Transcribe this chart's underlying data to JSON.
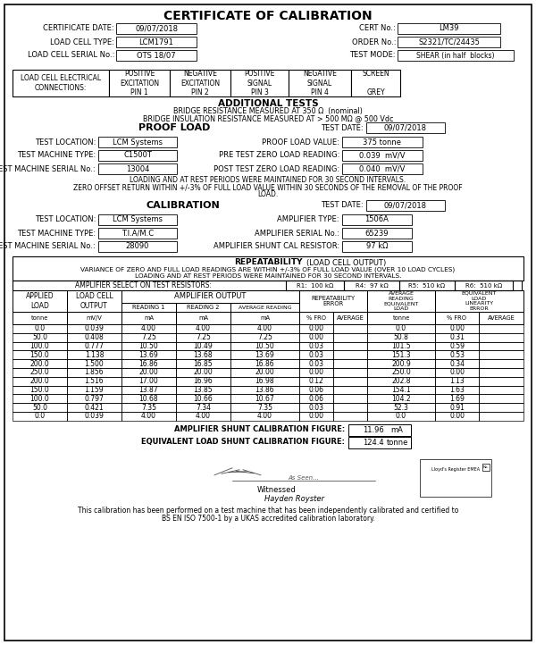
{
  "title": "CERTIFICATE OF CALIBRATION",
  "cert_date": "09/07/2018",
  "cert_no": "LM39",
  "load_cell_type": "LCM1791",
  "order_no": "S2321/TC/24435",
  "load_cell_serial": "OTS 18/07",
  "test_mode": "SHEAR (in half  blocks)",
  "conn_pos_exc": "POSITIVE\nEXCITATION\nPIN 1",
  "conn_neg_exc": "NEGATIVE\nEXCITATION\nPIN 2",
  "conn_pos_sig": "POSITIVE\nSIGNAL\nPIN 3",
  "conn_neg_sig": "NEGATIVE\nSIGNAL\nPIN 4",
  "conn_screen": "SCREEN\n\nGREY",
  "additional_tests_title": "ADDITIONAL TESTS",
  "bridge_resistance": "BRIDGE RESISTANCE MEASURED AT 350 Ω  (nominal)",
  "bridge_insulation": "BRIDGE INSULATION RESISTANCE MEASURED AT > 500 MΩ @ 500 Vdc",
  "proof_load_title": "PROOF LOAD",
  "proof_test_date": "09/07/2018",
  "proof_test_location": "LCM Systems",
  "proof_load_value": "375 tonne",
  "proof_machine_type": "C1500T",
  "pre_test_zero": "0.039  mV/V",
  "proof_serial": "13004",
  "post_test_zero": "0.040  mV/V",
  "proof_note1": "LOADING AND AT REST PERIODS WERE MAINTAINED FOR 30 SECOND INTERVALS.",
  "proof_note2": "ZERO OFFSET RETURN WITHIN +/-3% OF FULL LOAD VALUE WITHIN 30 SECONDS OF THE REMOVAL OF THE PROOF",
  "proof_note3": "LOAD.",
  "cal_title": "CALIBRATION",
  "cal_test_date": "09/07/2018",
  "cal_location": "LCM Systems",
  "cal_amp_type": "1506A",
  "cal_machine_type": "T.I.A/M.C",
  "cal_amp_serial": "65239",
  "cal_machine_serial": "28090",
  "cal_shunt": "97 kΩ",
  "repeatability_title": "REPEATABILITY",
  "repeatability_sub": "(LOAD CELL OUTPUT)",
  "repeatability_note1": "VARIANCE OF ZERO AND FULL LOAD READINGS ARE WITHIN +/-3% OF FULL LOAD VALUE (OVER 10 LOAD CYCLES)",
  "repeatability_note2": "LOADING AND AT REST PERIODS WERE MAINTAINED FOR 30 SECOND INTERVALS.",
  "amp_select_label": "AMPLIFIER SELECT ON TEST RESISTORS:",
  "table_data": [
    [
      0.0,
      0.039,
      4.0,
      4.0,
      4.0,
      0.0,
      0.0,
      0.0
    ],
    [
      50.0,
      0.408,
      7.25,
      7.25,
      7.25,
      0.0,
      50.8,
      0.31
    ],
    [
      100.0,
      0.777,
      10.5,
      10.49,
      10.5,
      0.03,
      101.5,
      0.59
    ],
    [
      150.0,
      1.138,
      13.69,
      13.68,
      13.69,
      0.03,
      151.3,
      0.53
    ],
    [
      200.0,
      1.5,
      16.86,
      16.85,
      16.86,
      0.03,
      200.9,
      0.34
    ],
    [
      250.0,
      1.856,
      20.0,
      20.0,
      20.0,
      0.0,
      250.0,
      0.0
    ],
    [
      200.0,
      1.516,
      17.0,
      16.96,
      16.98,
      0.12,
      202.8,
      1.13
    ],
    [
      150.0,
      1.159,
      13.87,
      13.85,
      13.86,
      0.06,
      154.1,
      1.63
    ],
    [
      100.0,
      0.797,
      10.68,
      10.66,
      10.67,
      0.06,
      104.2,
      1.69
    ],
    [
      50.0,
      0.421,
      7.35,
      7.34,
      7.35,
      0.03,
      52.3,
      0.91
    ],
    [
      0.0,
      0.039,
      4.0,
      4.0,
      4.0,
      0.0,
      0.0,
      0.0
    ]
  ],
  "shunt_cal_figure_val": "11.96",
  "shunt_cal_figure_unit": "mA",
  "equiv_load_shunt_val": "124.4",
  "equiv_load_shunt_unit": "tonne",
  "bottom_text1": "This calibration has been performed on a test machine that has been independently calibrated and certified to",
  "bottom_text2": "BS EN ISO 7500-1 by a UKAS accredited calibration laboratory."
}
